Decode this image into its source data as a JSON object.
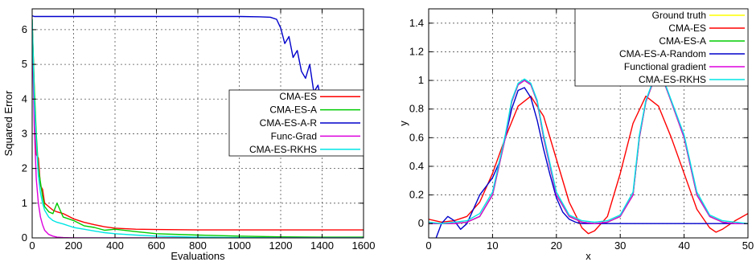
{
  "chart_data": [
    {
      "type": "line",
      "title": "",
      "xlabel": "Evaluations",
      "ylabel": "Squared Error",
      "xlim": [
        0,
        1600
      ],
      "ylim": [
        0,
        6.6
      ],
      "xticks": [
        0,
        200,
        400,
        600,
        800,
        1000,
        1200,
        1400,
        1600
      ],
      "yticks": [
        0,
        1,
        2,
        3,
        4,
        5,
        6
      ],
      "grid": true,
      "legend_position": "right-middle",
      "series": [
        {
          "name": "CMA-ES",
          "color": "#ff0000",
          "x": [
            0,
            10,
            20,
            30,
            40,
            50,
            60,
            80,
            100,
            120,
            150,
            200,
            250,
            300,
            350,
            400,
            500,
            600,
            800,
            1000,
            1200,
            1400,
            1600
          ],
          "y": [
            6.2,
            4.3,
            2.4,
            2.3,
            1.5,
            1.4,
            1.0,
            0.9,
            0.8,
            0.75,
            0.7,
            0.55,
            0.45,
            0.38,
            0.32,
            0.28,
            0.25,
            0.24,
            0.23,
            0.23,
            0.23,
            0.23,
            0.23
          ]
        },
        {
          "name": "CMA-ES-A",
          "color": "#00cc00",
          "x": [
            0,
            10,
            20,
            30,
            40,
            50,
            60,
            80,
            100,
            120,
            150,
            200,
            250,
            300,
            350,
            400,
            500,
            600,
            800,
            1000,
            1200,
            1400,
            1600
          ],
          "y": [
            6.3,
            4.35,
            3.0,
            2.0,
            1.6,
            1.2,
            0.9,
            0.75,
            0.7,
            1.0,
            0.6,
            0.5,
            0.35,
            0.3,
            0.22,
            0.25,
            0.18,
            0.12,
            0.08,
            0.05,
            0.03,
            0.02,
            0.02
          ]
        },
        {
          "name": "CMA-ES-A-R",
          "color": "#0000cc",
          "x": [
            0,
            10,
            20,
            40,
            100,
            200,
            400,
            600,
            800,
            1000,
            1100,
            1150,
            1180,
            1200,
            1220,
            1240,
            1260,
            1280,
            1300,
            1320,
            1340,
            1360,
            1380,
            1400,
            1420,
            1440,
            1460,
            1480,
            1500,
            1520,
            1540,
            1560,
            1580,
            1600
          ],
          "y": [
            6.4,
            6.38,
            6.38,
            6.38,
            6.38,
            6.38,
            6.38,
            6.38,
            6.38,
            6.38,
            6.37,
            6.36,
            6.3,
            6.05,
            5.6,
            5.8,
            5.2,
            5.4,
            4.8,
            4.6,
            5.0,
            4.2,
            4.4,
            3.8,
            4.0,
            3.6,
            3.9,
            3.5,
            3.7,
            3.45,
            3.5,
            3.4,
            3.38,
            3.35
          ]
        },
        {
          "name": "Func-Grad",
          "color": "#dd00dd",
          "x": [
            0,
            10,
            20,
            30,
            40,
            50,
            60,
            80,
            100,
            120,
            150,
            200,
            300,
            1600
          ],
          "y": [
            6.0,
            3.2,
            1.7,
            1.0,
            0.6,
            0.38,
            0.22,
            0.1,
            0.05,
            0.02,
            0.01,
            0.0,
            0.0,
            0.0
          ]
        },
        {
          "name": "CMA-ES-RKHS",
          "color": "#00e5e5",
          "x": [
            0,
            10,
            20,
            30,
            40,
            50,
            60,
            80,
            100,
            120,
            150,
            200,
            250,
            300,
            350,
            400,
            500,
            600,
            800,
            1000,
            1200,
            1400,
            1600
          ],
          "y": [
            6.3,
            4.0,
            2.8,
            1.8,
            1.3,
            1.0,
            0.8,
            0.6,
            0.5,
            0.45,
            0.4,
            0.3,
            0.25,
            0.2,
            0.15,
            0.12,
            0.08,
            0.05,
            0.02,
            0.01,
            0.0,
            0.0,
            0.0
          ]
        }
      ]
    },
    {
      "type": "line",
      "title": "",
      "xlabel": "x",
      "ylabel": "y",
      "xlim": [
        0,
        50
      ],
      "ylim": [
        -0.1,
        1.5
      ],
      "xticks": [
        0,
        10,
        20,
        30,
        40,
        50
      ],
      "yticks": [
        0,
        0.2,
        0.4,
        0.6,
        0.8,
        1,
        1.2,
        1.4
      ],
      "ytick_labels": [
        "0",
        "0.2",
        "0.4",
        "0.6",
        "0.8",
        "1",
        "1.2",
        "1.4"
      ],
      "grid": true,
      "legend_position": "top-right",
      "series": [
        {
          "name": "Ground truth",
          "color": "#ffff00",
          "x": [
            0,
            2,
            4,
            6,
            8,
            10,
            12,
            13,
            14,
            15,
            16,
            17,
            18,
            20,
            22,
            24,
            26,
            28,
            30,
            32,
            33,
            34,
            35,
            36,
            37,
            38,
            40,
            42,
            44,
            46,
            48,
            50
          ],
          "y": [
            0,
            0,
            0,
            0.01,
            0.05,
            0.2,
            0.6,
            0.85,
            0.97,
            1.0,
            0.97,
            0.85,
            0.6,
            0.2,
            0.05,
            0.01,
            0,
            0.01,
            0.05,
            0.2,
            0.6,
            0.85,
            0.97,
            1.0,
            0.97,
            0.85,
            0.6,
            0.2,
            0.05,
            0.01,
            0,
            0
          ]
        },
        {
          "name": "CMA-ES",
          "color": "#ff0000",
          "x": [
            0,
            2,
            4,
            6,
            8,
            10,
            12,
            14,
            16,
            18,
            20,
            22,
            24,
            25,
            26,
            28,
            30,
            32,
            34,
            36,
            38,
            40,
            42,
            44,
            45,
            46,
            48,
            50
          ],
          "y": [
            0.03,
            0.01,
            0.02,
            0.05,
            0.15,
            0.35,
            0.6,
            0.82,
            0.89,
            0.75,
            0.45,
            0.15,
            -0.03,
            -0.07,
            -0.05,
            0.05,
            0.35,
            0.7,
            0.89,
            0.82,
            0.6,
            0.35,
            0.1,
            -0.03,
            -0.06,
            -0.04,
            0.02,
            0.07
          ]
        },
        {
          "name": "CMA-ES-A",
          "color": "#00cc00",
          "x": [
            0,
            2,
            4,
            6,
            8,
            10,
            12,
            13,
            14,
            15,
            16,
            17,
            18,
            20,
            22,
            24,
            26,
            28,
            30,
            32,
            33,
            34,
            35,
            36,
            37,
            38,
            40,
            42,
            44,
            46,
            48,
            50
          ],
          "y": [
            0,
            0,
            0,
            0.01,
            0.05,
            0.2,
            0.6,
            0.85,
            0.97,
            1.0,
            0.97,
            0.85,
            0.6,
            0.2,
            0.05,
            0.01,
            0,
            0.01,
            0.05,
            0.2,
            0.6,
            0.85,
            0.97,
            1.0,
            0.97,
            0.85,
            0.6,
            0.2,
            0.05,
            0.01,
            0,
            0
          ]
        },
        {
          "name": "CMA-ES-A-Random",
          "color": "#0000cc",
          "x": [
            0,
            1,
            2,
            3,
            4,
            5,
            6,
            7,
            8,
            9,
            10,
            11,
            12,
            13,
            14,
            15,
            16,
            17,
            18,
            19,
            20,
            21,
            22,
            23,
            24,
            26,
            30,
            35,
            40,
            45,
            50
          ],
          "y": [
            -0.15,
            -0.12,
            0,
            0.05,
            0.02,
            -0.04,
            0,
            0.1,
            0.2,
            0.26,
            0.32,
            0.42,
            0.6,
            0.8,
            0.93,
            0.95,
            0.88,
            0.72,
            0.52,
            0.34,
            0.18,
            0.08,
            0.03,
            0.01,
            0,
            0,
            0,
            0,
            0,
            0,
            0
          ]
        },
        {
          "name": "Functional gradient",
          "color": "#dd00dd",
          "x": [
            0,
            2,
            4,
            6,
            8,
            10,
            12,
            13,
            14,
            15,
            16,
            17,
            18,
            20,
            22,
            24,
            26,
            28,
            30,
            32,
            33,
            34,
            35,
            36,
            37,
            38,
            40,
            42,
            44,
            46,
            48,
            50
          ],
          "y": [
            0,
            0,
            0,
            0.01,
            0.05,
            0.2,
            0.6,
            0.85,
            0.97,
            1.0,
            0.97,
            0.85,
            0.6,
            0.2,
            0.05,
            0.01,
            0,
            0.01,
            0.05,
            0.2,
            0.6,
            0.85,
            0.97,
            1.0,
            0.97,
            0.85,
            0.6,
            0.2,
            0.05,
            0.01,
            0,
            0
          ]
        },
        {
          "name": "CMA-ES-RKHS",
          "color": "#00e5e5",
          "x": [
            0,
            2,
            4,
            6,
            8,
            10,
            12,
            13,
            14,
            15,
            16,
            17,
            18,
            20,
            22,
            24,
            26,
            28,
            30,
            32,
            33,
            34,
            35,
            36,
            37,
            38,
            40,
            42,
            44,
            46,
            48,
            50
          ],
          "y": [
            0.01,
            0,
            0.01,
            0.02,
            0.07,
            0.22,
            0.62,
            0.86,
            0.98,
            1.01,
            0.98,
            0.86,
            0.62,
            0.22,
            0.06,
            0.02,
            0.01,
            0.02,
            0.06,
            0.22,
            0.62,
            0.86,
            0.98,
            1.0,
            0.98,
            0.86,
            0.62,
            0.22,
            0.06,
            0.02,
            0.01,
            0
          ]
        }
      ]
    }
  ]
}
